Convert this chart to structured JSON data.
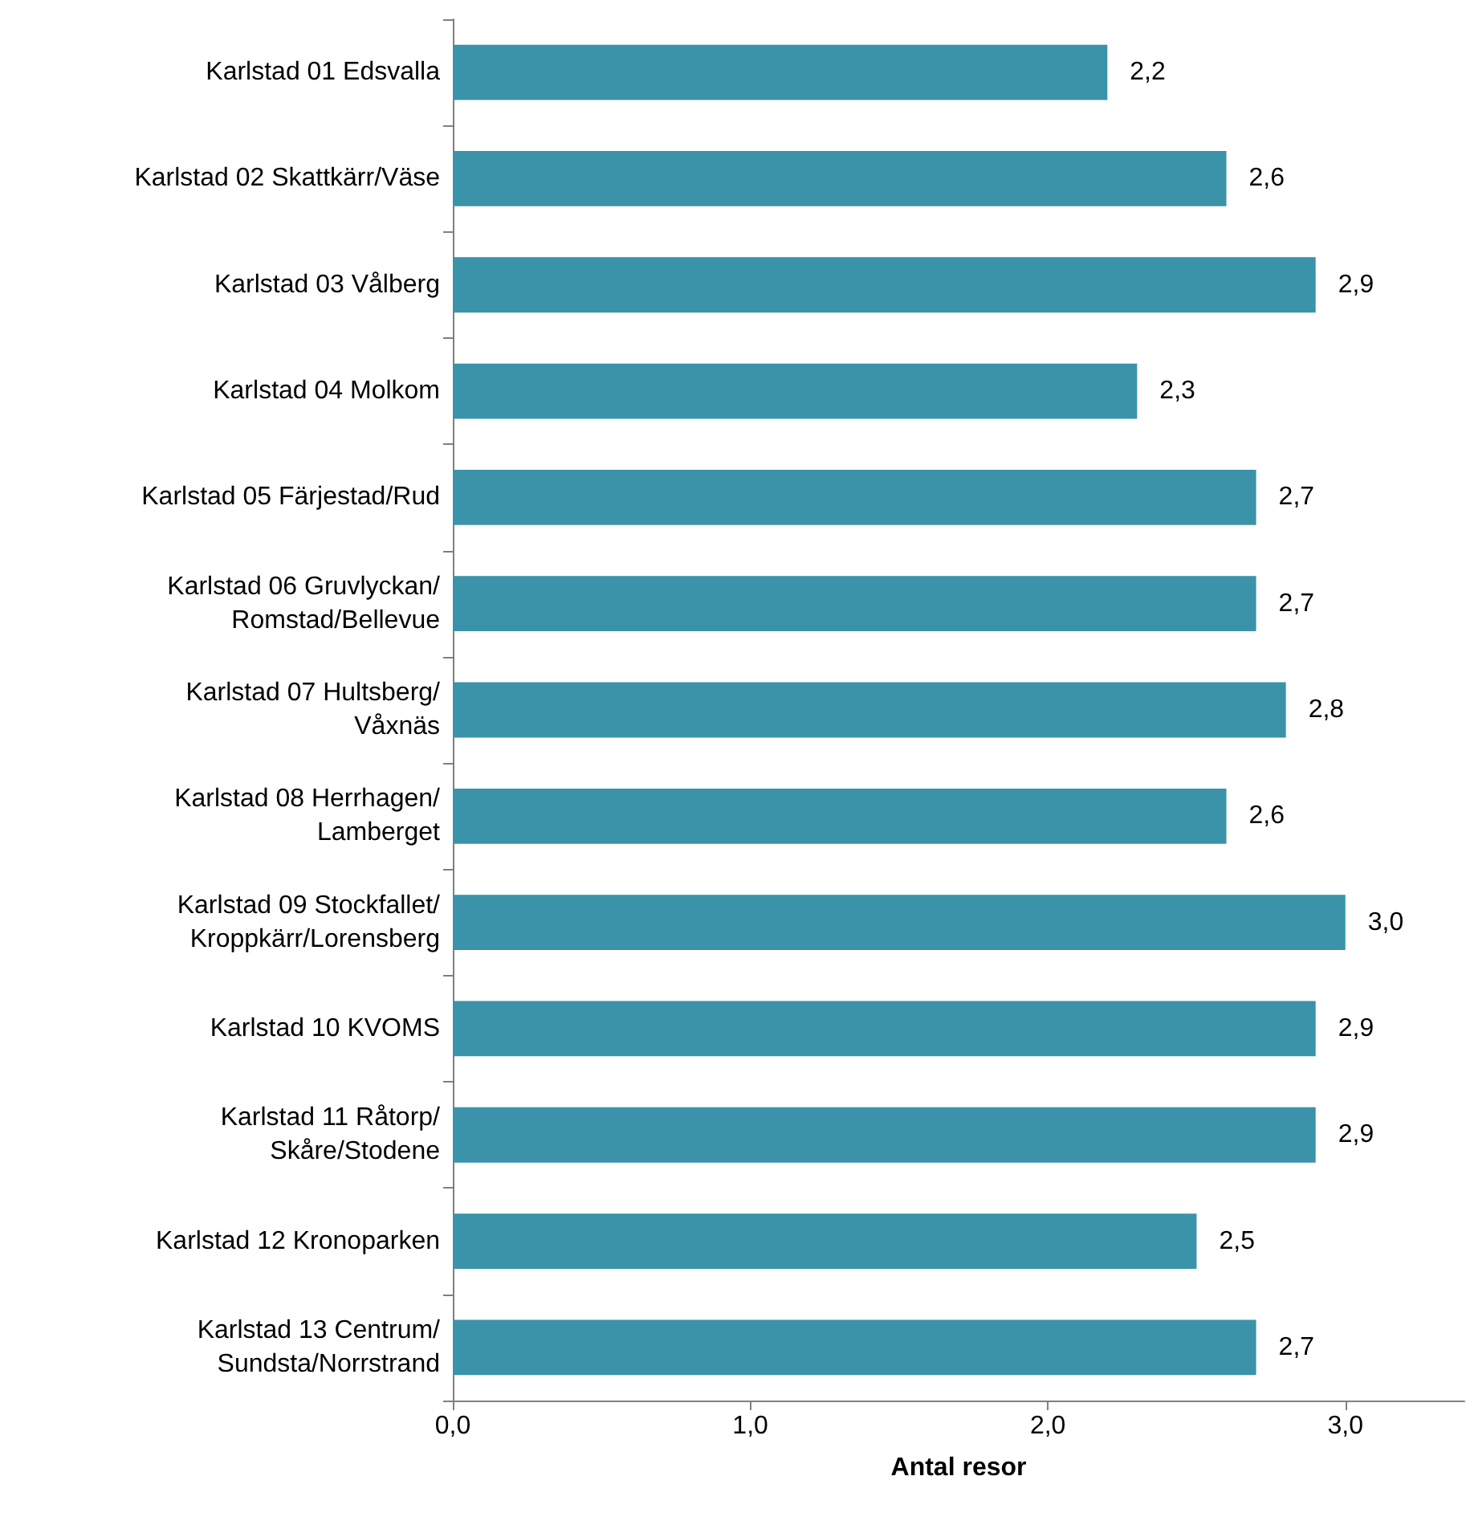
{
  "chart_data": {
    "type": "bar",
    "orientation": "horizontal",
    "xlabel": "Antal resor",
    "categories": [
      "Karlstad 01 Edsvalla",
      "Karlstad 02 Skattkärr/Väse",
      "Karlstad 03 Vålberg",
      "Karlstad 04 Molkom",
      "Karlstad 05 Färjestad/Rud",
      "Karlstad 06 Gruvlyckan/\nRomstad/Bellevue",
      "Karlstad 07 Hultsberg/\nVåxnäs",
      "Karlstad 08 Herrhagen/\nLamberget",
      "Karlstad 09 Stockfallet/\nKroppkärr/Lorensberg",
      "Karlstad 10 KVOMS",
      "Karlstad 11 Råtorp/\nSkåre/Stodene",
      "Karlstad 12 Kronoparken",
      "Karlstad 13 Centrum/\nSundsta/Norrstrand"
    ],
    "values": [
      2.2,
      2.6,
      2.9,
      2.3,
      2.7,
      2.7,
      2.8,
      2.6,
      3.0,
      2.9,
      2.9,
      2.5,
      2.7
    ],
    "value_labels": [
      "2,2",
      "2,6",
      "2,9",
      "2,3",
      "2,7",
      "2,7",
      "2,8",
      "2,6",
      "3,0",
      "2,9",
      "2,9",
      "2,5",
      "2,7"
    ],
    "color": "#3a93a8",
    "xlim": [
      0,
      3.4
    ],
    "xticks": [
      {
        "value": 0,
        "label": "0,0"
      },
      {
        "value": 1,
        "label": "1,0"
      },
      {
        "value": 2,
        "label": "2,0"
      },
      {
        "value": 3,
        "label": "3,0"
      }
    ],
    "grid": false
  }
}
